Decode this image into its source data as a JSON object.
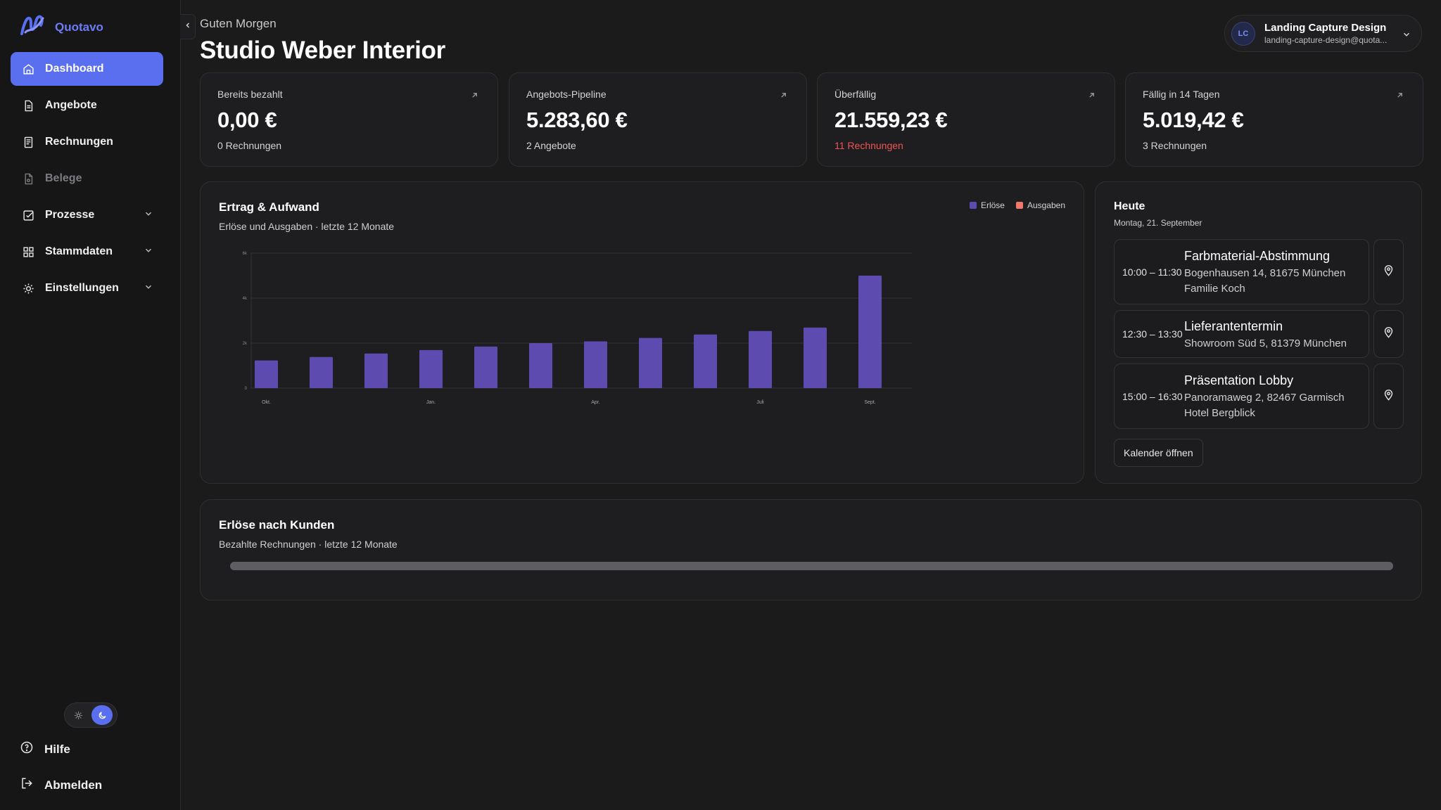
{
  "brand": {
    "name": "Quotavo",
    "logo_icon": "quotavo-logo-icon"
  },
  "sidebar": {
    "items": [
      {
        "label": "Dashboard",
        "icon": "home-icon"
      },
      {
        "label": "Angebote",
        "icon": "document-icon"
      },
      {
        "label": "Rechnungen",
        "icon": "receipt-icon"
      },
      {
        "label": "Belege",
        "icon": "file-icon"
      },
      {
        "label": "Prozesse",
        "icon": "checkbox-icon"
      },
      {
        "label": "Stammdaten",
        "icon": "grid-icon"
      },
      {
        "label": "Einstellungen",
        "icon": "sun-gear-icon"
      }
    ],
    "help_label": "Hilfe",
    "logout_label": "Abmelden"
  },
  "header": {
    "greeting": "Guten Morgen",
    "title": "Studio Weber Interior"
  },
  "account": {
    "initials": "LC",
    "name": "Landing Capture Design",
    "email": "landing-capture-design@quota..."
  },
  "kpis": [
    {
      "label": "Bereits bezahlt",
      "value": "0,00 €",
      "sub": "0 Rechnungen"
    },
    {
      "label": "Angebots-Pipeline",
      "value": "5.283,60 €",
      "sub": "2 Angebote"
    },
    {
      "label": "Überfällig",
      "value": "21.559,23 €",
      "sub": "11 Rechnungen"
    },
    {
      "label": "Fällig in 14 Tagen",
      "value": "5.019,42 €",
      "sub": "3 Rechnungen"
    }
  ],
  "revenue_panel": {
    "title": "Ertrag & Aufwand",
    "subtitle": "Erlöse und Ausgaben · letzte 12 Monate"
  },
  "chart_data": {
    "type": "bar",
    "categories": [
      "Okt.",
      "",
      "",
      "Jan.",
      "",
      "",
      "Apr.",
      "",
      "",
      "Juli",
      "",
      "Sept."
    ],
    "series": [
      {
        "name": "Erlöse",
        "color": "#5e4bb0",
        "values": [
          0.8,
          0.9,
          1.0,
          1.1,
          1.2,
          1.3,
          1.35,
          1.45,
          1.55,
          1.65,
          1.75,
          3.25
        ]
      },
      {
        "name": "Ausgaben",
        "color": "#f07a6a",
        "values": [
          0,
          0,
          0,
          0,
          0,
          0,
          0,
          0,
          0,
          0,
          0,
          0
        ]
      }
    ],
    "y_ticks": [
      "0",
      "2k",
      "4k",
      "6k"
    ],
    "ylim": [
      0,
      3.9
    ],
    "legend_position": "top-right",
    "grid": true
  },
  "today": {
    "title": "Heute",
    "date": "Montag, 21. September",
    "events": [
      {
        "time": "10:00 – 11:30",
        "title": "Farbmaterial-Abstimmung",
        "address": "Bogenhausen 14, 81675 München",
        "client": "Familie Koch"
      },
      {
        "time": "12:30 – 13:30",
        "title": "Lieferantentermin",
        "address": "Showroom Süd 5, 81379 München",
        "client": ""
      },
      {
        "time": "15:00 – 16:30",
        "title": "Präsentation Lobby",
        "address": "Panoramaweg 2, 82467 Garmisch",
        "client": "Hotel Bergblick"
      }
    ],
    "calendar_button": "Kalender öffnen"
  },
  "customers_panel": {
    "title": "Erlöse nach Kunden",
    "subtitle": "Bezahlte Rechnungen · letzte 12 Monate",
    "progress": 1.0
  }
}
